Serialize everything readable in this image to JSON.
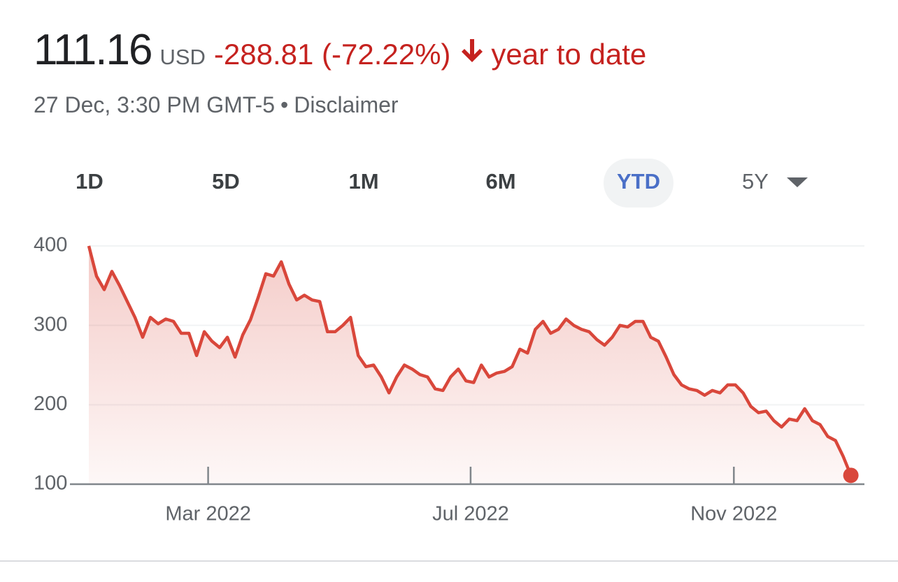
{
  "header": {
    "price": "111.16",
    "currency": "USD",
    "change": "-288.81 (-72.22%)",
    "period": "year to date",
    "timestamp": "27 Dec, 3:30 PM GMT-5",
    "separator": "•",
    "disclaimer": "Disclaimer"
  },
  "tabs": [
    "1D",
    "5D",
    "1M",
    "6M",
    "YTD",
    "5Y"
  ],
  "selected_tab": 4,
  "dropdown_tab": 5,
  "chart_data": {
    "type": "line",
    "color": "#d9473b",
    "grid": true,
    "area": true,
    "end_marker": true,
    "values": [
      400,
      362,
      345,
      368,
      350,
      330,
      310,
      285,
      310,
      302,
      308,
      305,
      290,
      290,
      262,
      292,
      280,
      272,
      285,
      260,
      288,
      307,
      335,
      365,
      362,
      380,
      352,
      332,
      338,
      332,
      330,
      292,
      292,
      300,
      310,
      262,
      248,
      250,
      235,
      215,
      235,
      250,
      245,
      238,
      235,
      220,
      218,
      235,
      245,
      230,
      228,
      250,
      235,
      240,
      242,
      248,
      270,
      265,
      295,
      305,
      290,
      295,
      308,
      300,
      295,
      292,
      282,
      275,
      285,
      300,
      298,
      305,
      305,
      285,
      280,
      260,
      238,
      225,
      220,
      218,
      212,
      218,
      215,
      225,
      225,
      215,
      198,
      190,
      192,
      180,
      172,
      182,
      180,
      195,
      180,
      175,
      160,
      155,
      135,
      111.16
    ],
    "xlim": [
      0,
      99.4
    ],
    "xticks": [
      {
        "value": 15.5,
        "label": "Mar 2022"
      },
      {
        "value": 49.6,
        "label": "Jul 2022"
      },
      {
        "value": 83.8,
        "label": "Nov 2022"
      }
    ],
    "ylim": [
      100,
      400
    ],
    "yticks": [
      100,
      200,
      300,
      400
    ]
  }
}
